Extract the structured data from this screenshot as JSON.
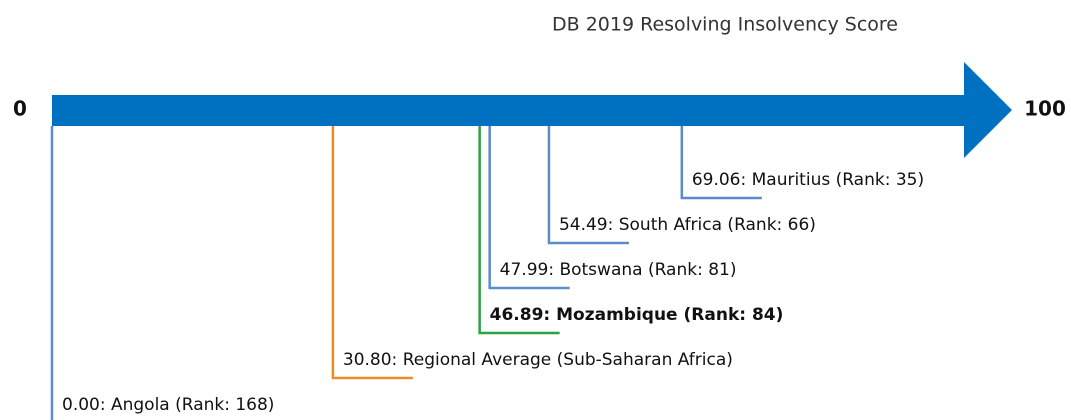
{
  "chart_data": {
    "type": "scale",
    "title": "DB 2019 Resolving Insolvency Score",
    "categories": [
      "69.06: Mauritius (Rank: 35)",
      "54.49: South Africa (Rank: 66)",
      "47.99: Botswana (Rank: 81)",
      "46.89: Mozambique (Rank: 84)",
      "30.80: Regional Average (Sub-Saharan Africa)",
      "0.00: Angola (Rank: 168)"
    ],
    "values": [
      69.06,
      54.49,
      47.99,
      46.89,
      30.8,
      0.0
    ],
    "colors": [
      "#5b8bc9",
      "#5b8bc9",
      "#5b8bc9",
      "#2ca243",
      "#f08a24",
      "#5b8bc9"
    ],
    "highlight_index": 3,
    "axis_color": "#0070c0",
    "xlim": [
      0,
      100
    ],
    "xticks": [
      0,
      100
    ]
  }
}
